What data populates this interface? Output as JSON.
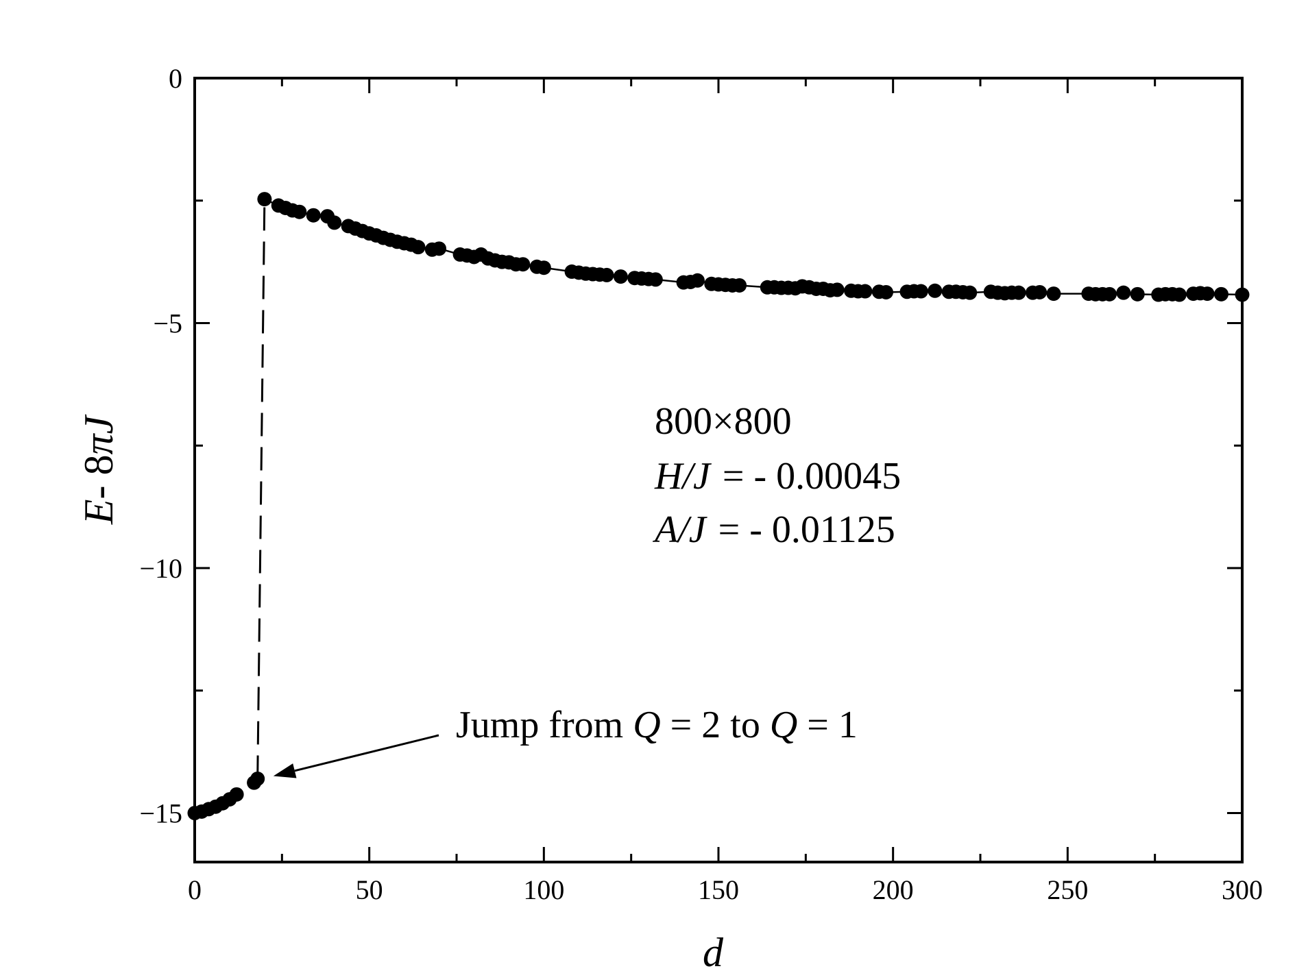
{
  "chart_data": {
    "type": "scatter",
    "xlabel": "d",
    "ylabel_parts": [
      "E",
      "- 8",
      "πJ"
    ],
    "xlim": [
      0,
      300
    ],
    "ylim": [
      -16,
      0
    ],
    "x_ticks": [
      0,
      50,
      100,
      150,
      200,
      250,
      300
    ],
    "x_tick_labels": [
      "0",
      "50",
      "100",
      "150",
      "200",
      "250",
      "300"
    ],
    "y_ticks": [
      0,
      -5,
      -10,
      -15
    ],
    "y_tick_labels": [
      "0",
      "−5",
      "−10",
      "−15"
    ],
    "grid": false,
    "series": [
      {
        "style": "markers",
        "x": [
          0,
          2,
          4,
          6,
          8,
          10,
          12,
          17,
          18
        ],
        "y": [
          -15.0,
          -14.97,
          -14.92,
          -14.87,
          -14.8,
          -14.72,
          -14.62,
          -14.38,
          -14.3
        ]
      },
      {
        "style": "markers+line",
        "x": [
          20,
          24,
          26,
          28,
          30,
          34,
          38,
          40,
          44,
          46,
          48,
          50,
          52,
          54,
          56,
          58,
          60,
          62,
          64,
          68,
          70,
          76,
          78,
          80,
          82,
          84,
          86,
          88,
          90,
          92,
          94,
          98,
          100,
          108,
          110,
          112,
          114,
          116,
          118,
          122,
          126,
          128,
          130,
          132,
          140,
          142,
          144,
          148,
          150,
          152,
          154,
          156,
          164,
          166,
          168,
          170,
          172,
          174,
          176,
          178,
          180,
          182,
          184,
          188,
          190,
          192,
          196,
          198,
          204,
          206,
          208,
          212,
          216,
          218,
          220,
          222,
          228,
          230,
          232,
          234,
          236,
          240,
          242,
          246,
          256,
          258,
          260,
          262,
          266,
          270,
          276,
          278,
          280,
          282,
          286,
          288,
          290,
          294,
          300
        ],
        "y": [
          -2.47,
          -2.6,
          -2.65,
          -2.7,
          -2.73,
          -2.8,
          -2.82,
          -2.95,
          -3.02,
          -3.07,
          -3.12,
          -3.17,
          -3.21,
          -3.26,
          -3.3,
          -3.34,
          -3.37,
          -3.4,
          -3.45,
          -3.5,
          -3.48,
          -3.6,
          -3.62,
          -3.65,
          -3.6,
          -3.68,
          -3.72,
          -3.75,
          -3.76,
          -3.8,
          -3.8,
          -3.85,
          -3.87,
          -3.95,
          -3.97,
          -3.99,
          -4.0,
          -4.01,
          -4.02,
          -4.05,
          -4.08,
          -4.09,
          -4.1,
          -4.11,
          -4.17,
          -4.16,
          -4.13,
          -4.2,
          -4.21,
          -4.22,
          -4.23,
          -4.23,
          -4.27,
          -4.27,
          -4.28,
          -4.28,
          -4.29,
          -4.25,
          -4.27,
          -4.3,
          -4.3,
          -4.33,
          -4.32,
          -4.34,
          -4.35,
          -4.35,
          -4.36,
          -4.37,
          -4.36,
          -4.35,
          -4.35,
          -4.34,
          -4.36,
          -4.36,
          -4.37,
          -4.38,
          -4.36,
          -4.38,
          -4.39,
          -4.38,
          -4.38,
          -4.38,
          -4.37,
          -4.4,
          -4.4,
          -4.41,
          -4.41,
          -4.41,
          -4.38,
          -4.41,
          -4.42,
          -4.41,
          -4.41,
          -4.42,
          -4.4,
          -4.39,
          -4.4,
          -4.41,
          -4.42
        ]
      }
    ],
    "jump": {
      "x": 19,
      "from": -14.3,
      "to": -2.47
    },
    "annotations": {
      "size": "800×800",
      "h_label": "H/J",
      "h_value": "= - 0.00045",
      "a_label": "A/J",
      "a_value": "= - 0.01125",
      "jump_text": "Jump from",
      "jump_q1": "Q",
      "jump_mid": "=  2 to",
      "jump_q2": "Q",
      "jump_end": "=  1",
      "arrow_target": {
        "x": 19,
        "y": -14.3
      }
    }
  }
}
